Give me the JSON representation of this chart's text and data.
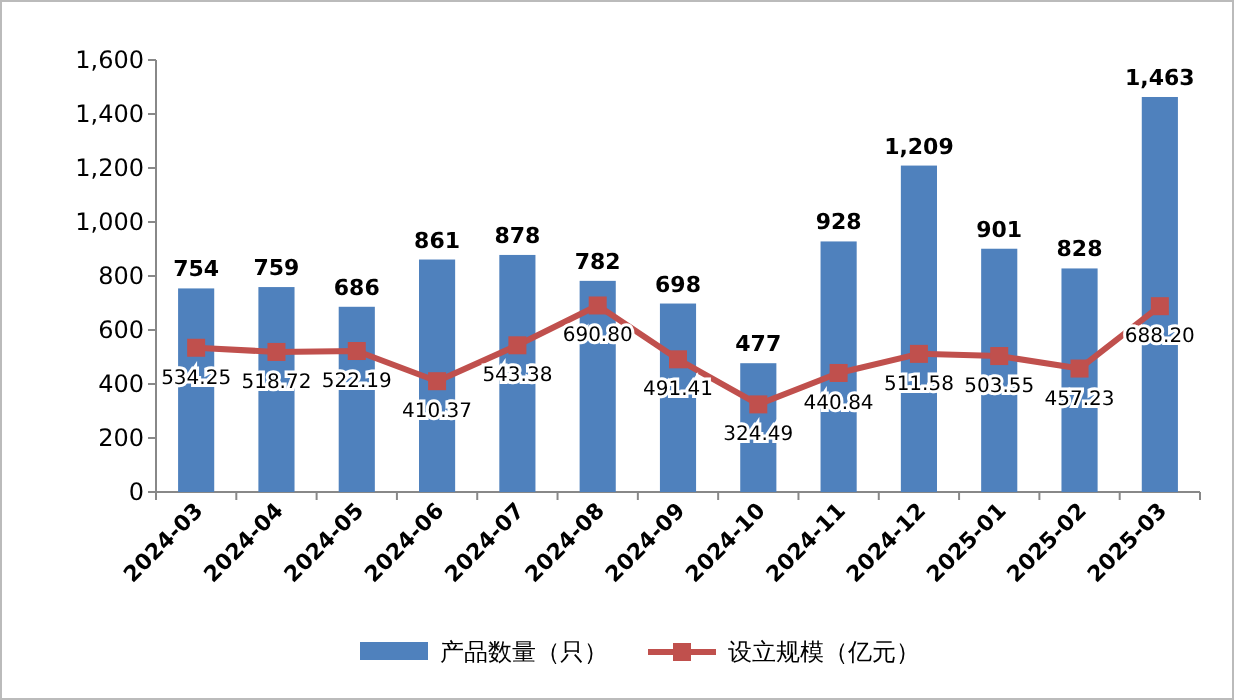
{
  "chart_data": {
    "type": "bar",
    "categories": [
      "2024-03",
      "2024-04",
      "2024-05",
      "2024-06",
      "2024-07",
      "2024-08",
      "2024-09",
      "2024-10",
      "2024-11",
      "2024-12",
      "2025-01",
      "2025-02",
      "2025-03"
    ],
    "series": [
      {
        "name": "产品数量（只）",
        "color": "#4f81bd",
        "values": [
          754,
          759,
          686,
          861,
          878,
          782,
          698,
          477,
          928,
          1209,
          901,
          828,
          1463
        ],
        "value_labels": [
          "754",
          "759",
          "686",
          "861",
          "878",
          "782",
          "698",
          "477",
          "928",
          "1,209",
          "901",
          "828",
          "1,463"
        ]
      },
      {
        "name": "设立规模（亿元）",
        "type": "line",
        "color": "#c0504d",
        "values": [
          534.25,
          518.72,
          522.19,
          410.37,
          543.38,
          690.8,
          491.41,
          324.49,
          440.84,
          511.58,
          503.55,
          457.23,
          688.2
        ],
        "value_labels": [
          "534.25",
          "518.72",
          "522.19",
          "410.37",
          "543.38",
          "690.80",
          "491.41",
          "324.49",
          "440.84",
          "511.58",
          "503.55",
          "457.23",
          "688.20"
        ]
      }
    ],
    "ylim": [
      0,
      1600
    ],
    "yticks": [
      0,
      200,
      400,
      600,
      800,
      {
        "value": 1000,
        "label": "1,000"
      },
      {
        "value": 1200,
        "label": "1,200"
      },
      {
        "value": 1400,
        "label": "1,400"
      },
      {
        "value": 1600,
        "label": "1,600"
      }
    ],
    "marker": "square",
    "line_style": "solid",
    "legend": "bottom"
  }
}
